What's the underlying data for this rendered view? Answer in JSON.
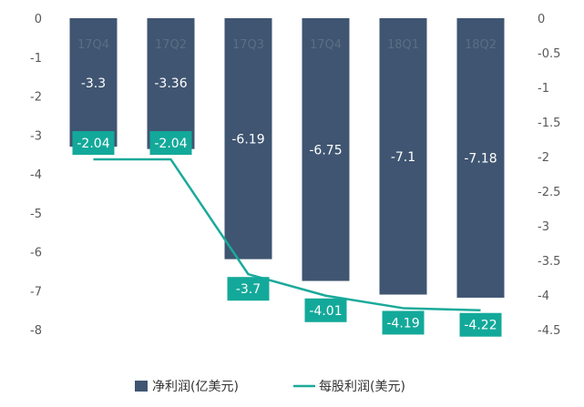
{
  "chart_data": {
    "type": "bar",
    "categories": [
      "17Q4",
      "17Q2",
      "17Q3",
      "17Q4",
      "18Q1",
      "18Q2"
    ],
    "series": [
      {
        "name": "净利润(亿美元)",
        "type": "bar",
        "axis": "left",
        "values": [
          -3.3,
          -3.36,
          -6.19,
          -6.75,
          -7.1,
          -7.18
        ]
      },
      {
        "name": "每股利润(美元)",
        "type": "line",
        "axis": "right",
        "values": [
          -2.04,
          -2.04,
          -3.7,
          -4.01,
          -4.19,
          -4.22
        ]
      }
    ],
    "y_left": {
      "min": -8,
      "max": 0,
      "ticks": [
        0,
        -1,
        -2,
        -3,
        -4,
        -5,
        -6,
        -7,
        -8
      ]
    },
    "y_right": {
      "min": -4.5,
      "max": 0,
      "ticks": [
        "0",
        "-0.5",
        "-1",
        "-1.5",
        "-2",
        "-2.5",
        "-3",
        "-3.5",
        "-4",
        "-4.5"
      ]
    },
    "bar_value_labels": [
      "-3.3",
      "-3.36",
      "-6.19",
      "-6.75",
      "-7.1",
      "-7.18"
    ],
    "line_value_labels": [
      "-2.04",
      "-2.04",
      "-3.7",
      "-4.01",
      "-4.19",
      "-4.22"
    ],
    "legend": {
      "position": "bottom"
    },
    "grid": false,
    "colors": {
      "bar": "#3f5571",
      "line": "#1aaa9a",
      "line_label_bg": "#13a99a"
    }
  }
}
